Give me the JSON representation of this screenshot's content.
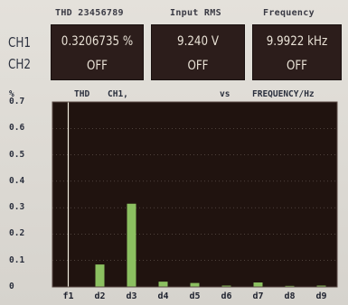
{
  "readout": {
    "headers": {
      "thd": "THD 23456789",
      "input_rms": "Input RMS",
      "frequency": "Frequency"
    },
    "ch1": {
      "label": "CH1",
      "thd": "0.3206735 %",
      "input_rms": "9.240  V",
      "frequency": "9.9922 kHz"
    },
    "ch2": {
      "label": "CH2",
      "thd": "OFF",
      "input_rms": "OFF",
      "frequency": "OFF"
    }
  },
  "chart_header": {
    "y_unit": "%",
    "measure": "THD",
    "channel": "CH1,",
    "vs": "vs",
    "x_measure": "FREQUENCY/Hz"
  },
  "chart_data": {
    "type": "bar",
    "title": "",
    "xlabel": "FREQUENCY/Hz",
    "ylabel": "%",
    "ylim": [
      0,
      0.7
    ],
    "yticks": [
      "0.7",
      "0.6",
      "0.5",
      "0.4",
      "0.3",
      "0.2",
      "0.1",
      "0"
    ],
    "categories": [
      "f1",
      "d2",
      "d3",
      "d4",
      "d5",
      "d6",
      "d7",
      "d8",
      "d9"
    ],
    "values": [
      0.7,
      0.085,
      0.315,
      0.02,
      0.015,
      0.005,
      0.017,
      0.004,
      0.005
    ],
    "colors": {
      "fundamental": "#f2ede0",
      "harmonic": "#8bc060",
      "plot_bg": "#20130f",
      "grid": "#6a5f58"
    }
  }
}
